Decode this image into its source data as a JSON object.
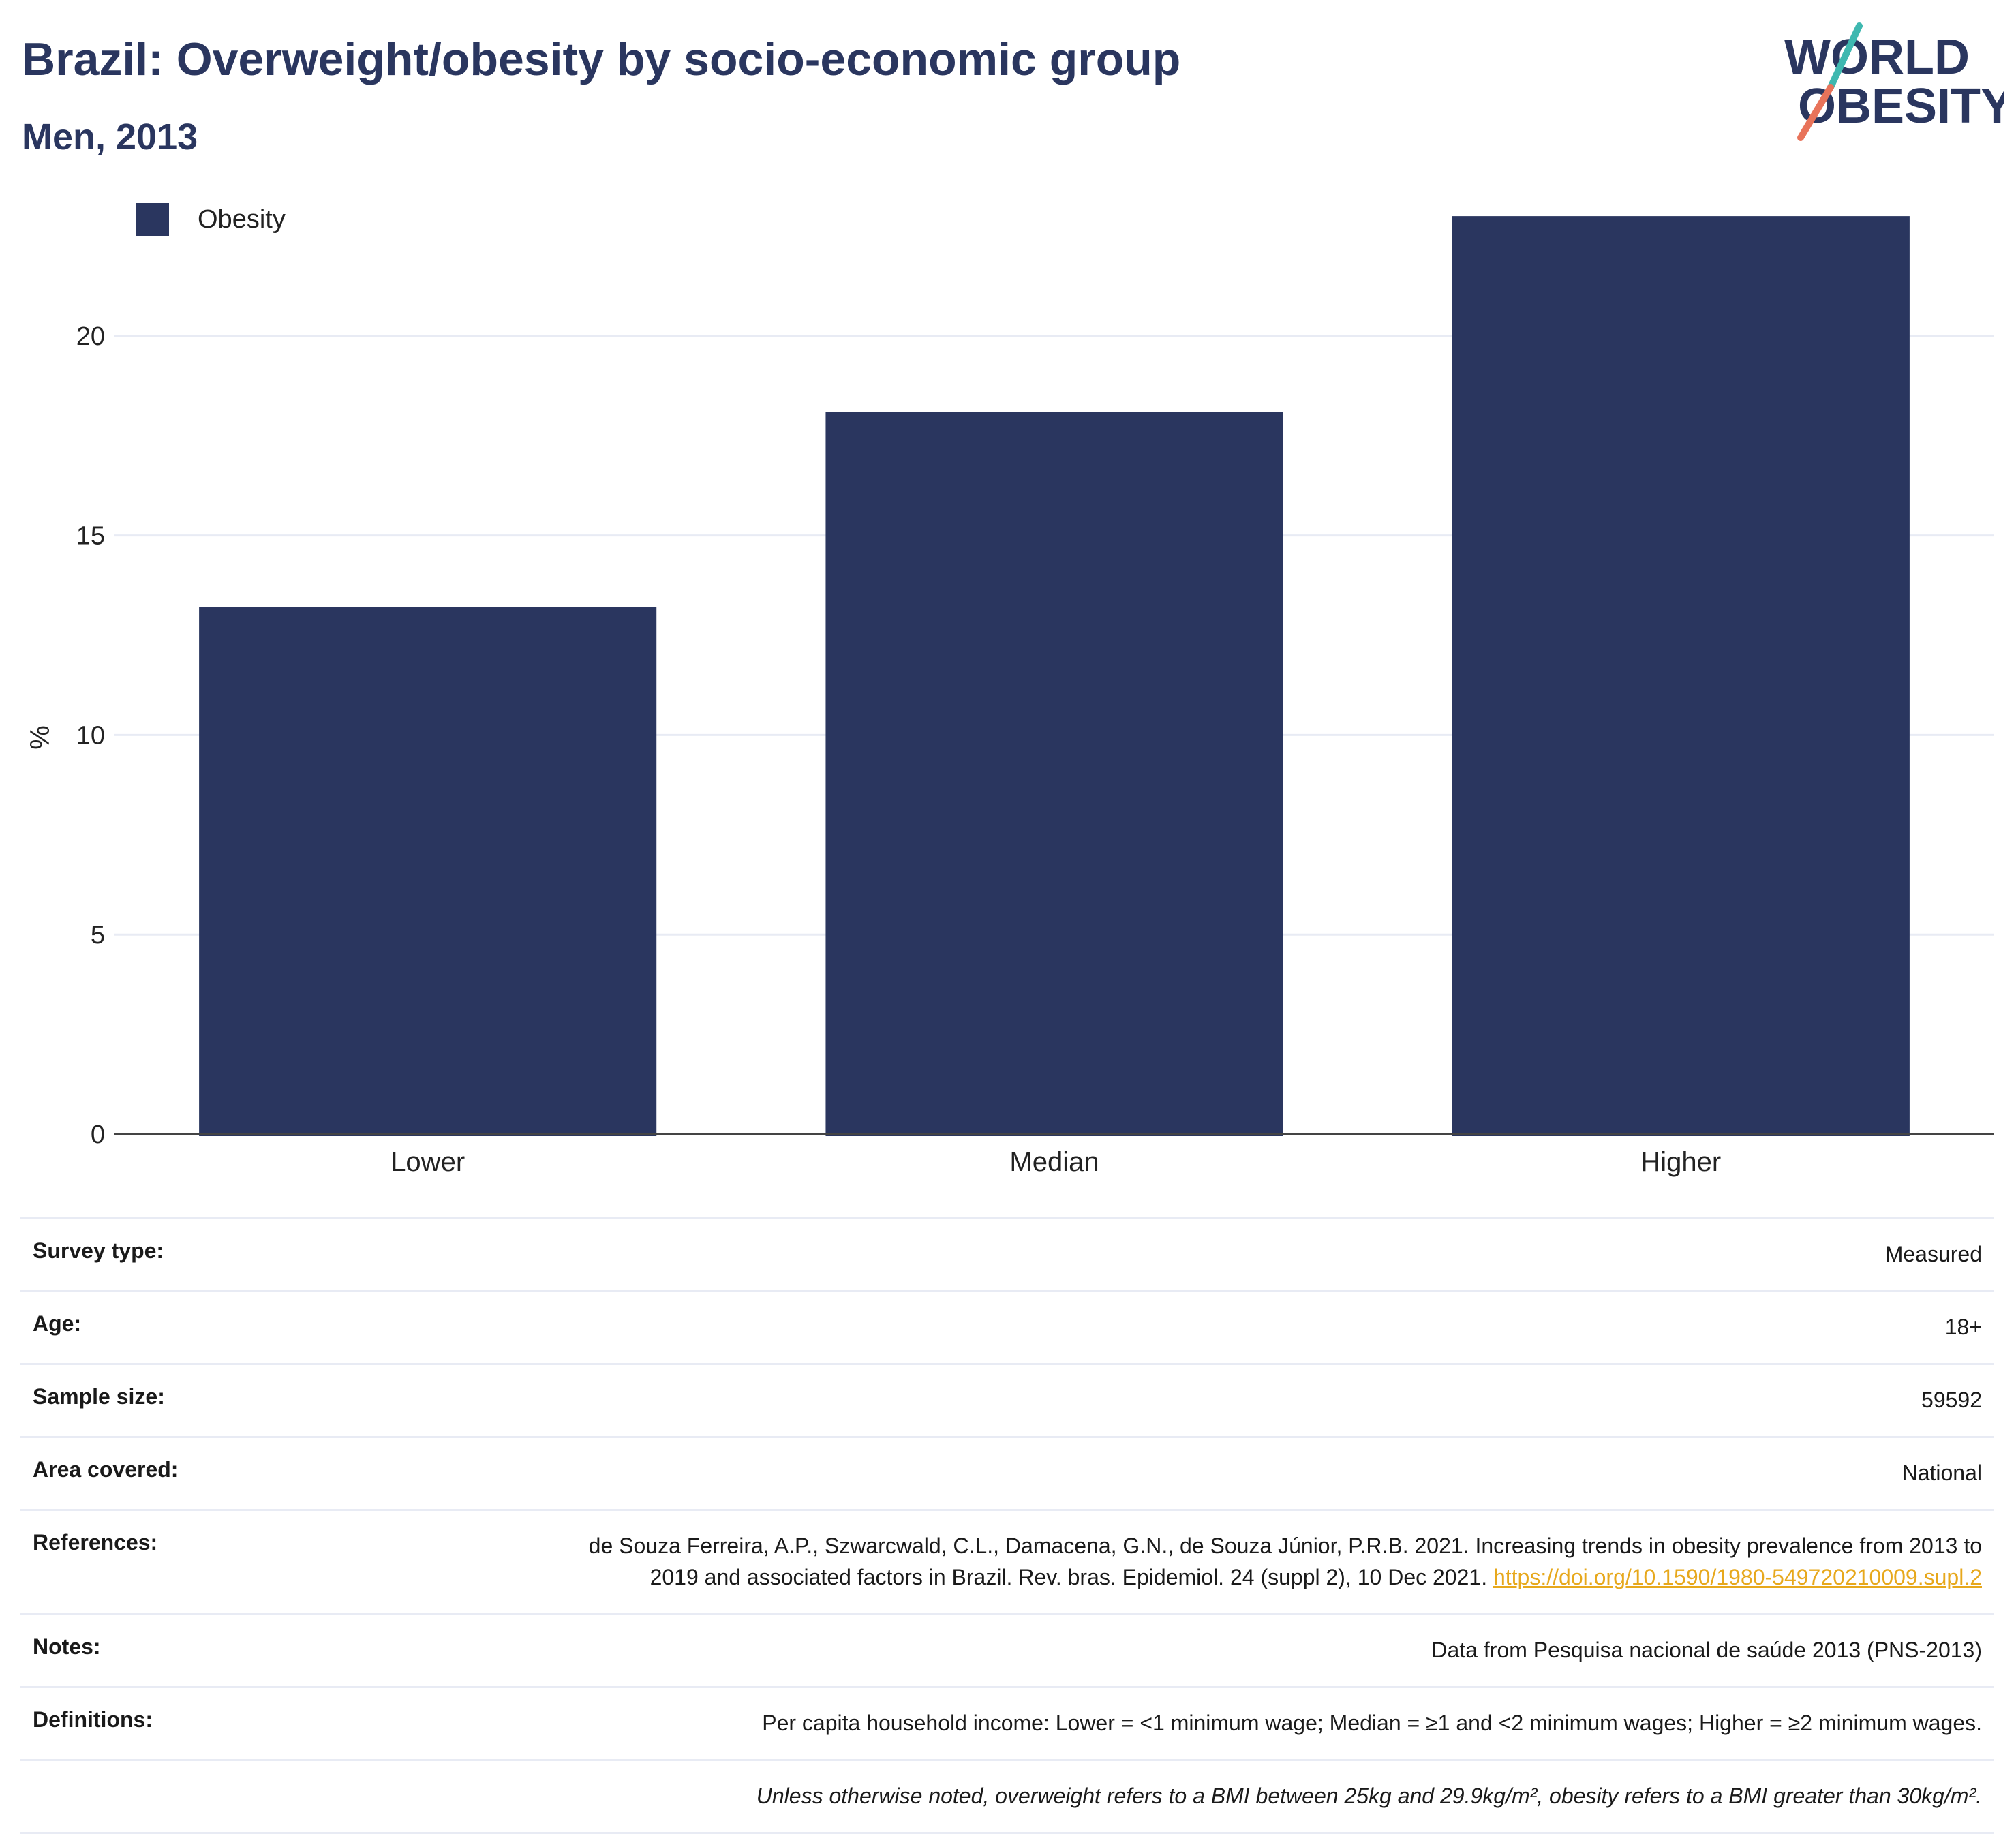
{
  "header": {
    "title": "Brazil: Overweight/obesity by socio-economic group",
    "subtitle": "Men, 2013",
    "logo_text": [
      "WORLD",
      "OBESITY"
    ]
  },
  "colors": {
    "bar": "#2a365f",
    "grid": "#e8ebf4",
    "axis": "#444444",
    "link": "#e7a81c",
    "logo_teal": "#3fb8b0",
    "logo_coral": "#e8735a"
  },
  "chart_data": {
    "type": "bar",
    "categories": [
      "Lower",
      "Median",
      "Higher"
    ],
    "series": [
      {
        "name": "Obesity",
        "values": [
          13.2,
          18.1,
          23.0
        ]
      }
    ],
    "title": "",
    "xlabel": "",
    "ylabel": "%",
    "ylim": [
      0,
      25
    ],
    "yticks": [
      0,
      5,
      10,
      15,
      20
    ],
    "grid": true,
    "legend_position": "top-left"
  },
  "info": {
    "survey_type": {
      "label": "Survey type:",
      "value": "Measured"
    },
    "age": {
      "label": "Age:",
      "value": "18+"
    },
    "sample_size": {
      "label": "Sample size:",
      "value": "59592"
    },
    "area_covered": {
      "label": "Area covered:",
      "value": "National"
    },
    "references": {
      "label": "References:",
      "value": "de Souza Ferreira, A.P., Szwarcwald, C.L., Damacena, G.N., de Souza Júnior, P.R.B. 2021. Increasing trends in obesity prevalence from 2013 to 2019 and associated factors in Brazil. Rev. bras. Epidemiol. 24 (suppl 2), 10 Dec 2021.",
      "link": "https://doi.org/10.1590/1980-549720210009.supl.2"
    },
    "notes": {
      "label": "Notes:",
      "value": "Data from Pesquisa nacional de saúde 2013 (PNS-2013)"
    },
    "definitions": {
      "label": "Definitions:",
      "value": "Per capita household income: Lower = <1 minimum wage; Median = ≥1 and <2 minimum wages; Higher = ≥2 minimum wages."
    },
    "footnote": "Unless otherwise noted, overweight refers to a BMI between 25kg and 29.9kg/m², obesity refers to a BMI greater than 30kg/m²."
  }
}
